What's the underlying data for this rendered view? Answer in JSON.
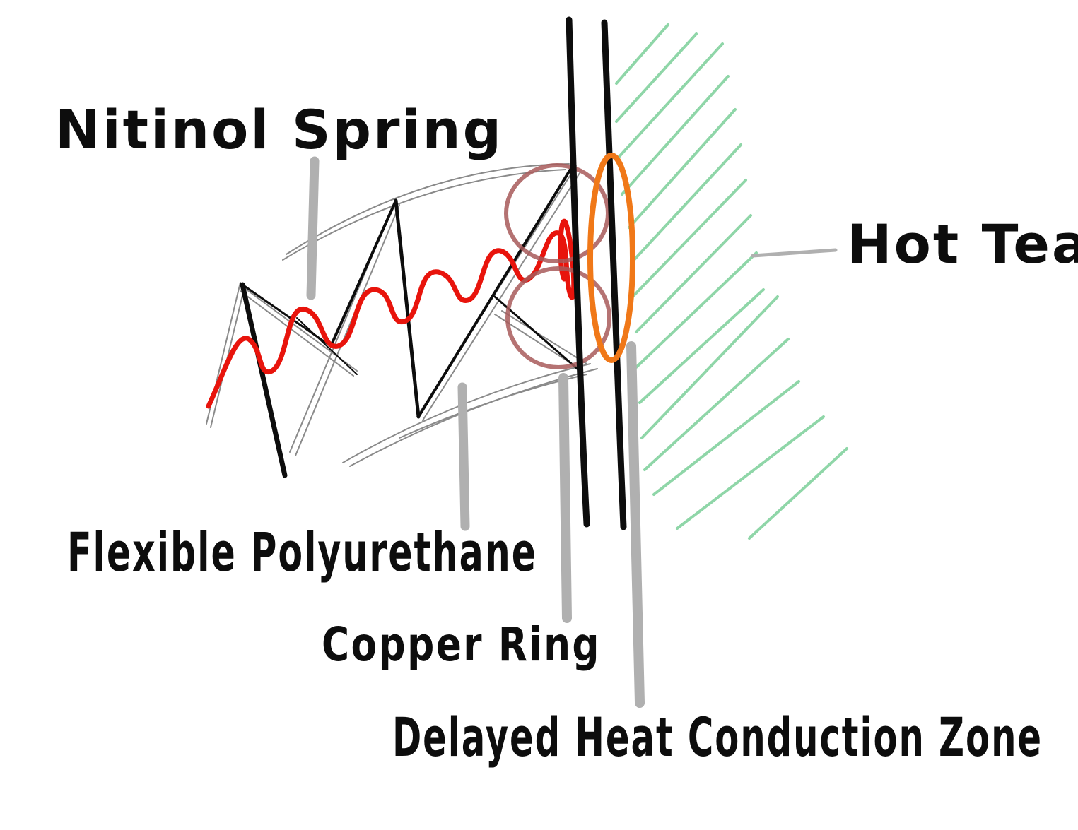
{
  "diagram": {
    "labels": {
      "nitinol_spring": "Nitinol Spring",
      "hot_tea": "Hot Tea",
      "flexible_polyurethane": "Flexible Polyurethane",
      "copper_ring": "Copper Ring",
      "delayed_heat_conduction_zone": "Delayed Heat Conduction Zone"
    },
    "colors": {
      "background": "#ffffff",
      "ink": "#0d0d0d",
      "leader_line": "#b0b0b0",
      "spring_wave": "#e8140c",
      "copper_ring": "#a85a5a",
      "heat_zone_ring": "#f07818",
      "tea_hatching": "#8fd6a8",
      "polyurethane_sketch": "#8a8a8a"
    }
  }
}
